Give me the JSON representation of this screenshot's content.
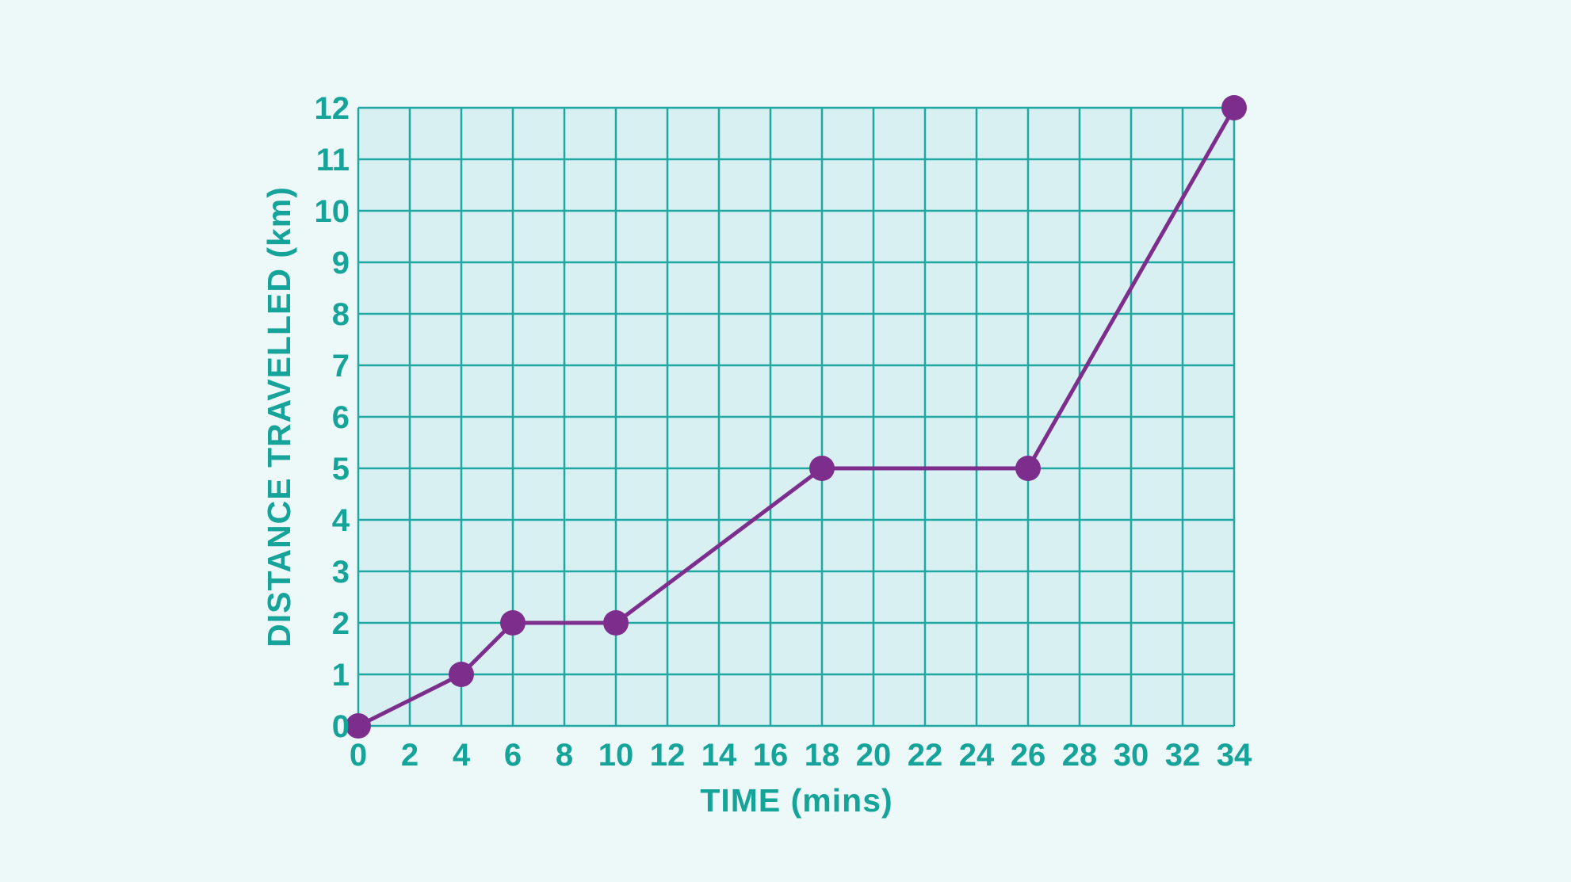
{
  "chart_data": {
    "type": "line",
    "xlabel": "TIME (mins)",
    "ylabel": "DISTANCE TRAVELLED (km)",
    "x": [
      0,
      4,
      6,
      10,
      18,
      26,
      34
    ],
    "y": [
      0,
      1,
      2,
      2,
      5,
      5,
      12
    ],
    "xlim": [
      0,
      34
    ],
    "ylim": [
      0,
      12
    ],
    "xticks": [
      0,
      2,
      4,
      6,
      8,
      10,
      12,
      14,
      16,
      18,
      20,
      22,
      24,
      26,
      28,
      30,
      32,
      34
    ],
    "yticks": [
      0,
      1,
      2,
      3,
      4,
      5,
      6,
      7,
      8,
      9,
      10,
      11,
      12
    ],
    "grid": true,
    "legend": false,
    "marker": "circle",
    "colors": {
      "line": "#7d2e8d",
      "marker": "#7d2e8d",
      "grid": "#1fa8a1",
      "text": "#16a399",
      "plot_bg": "#d9f0f3",
      "page_bg": "#edf8f9"
    }
  }
}
